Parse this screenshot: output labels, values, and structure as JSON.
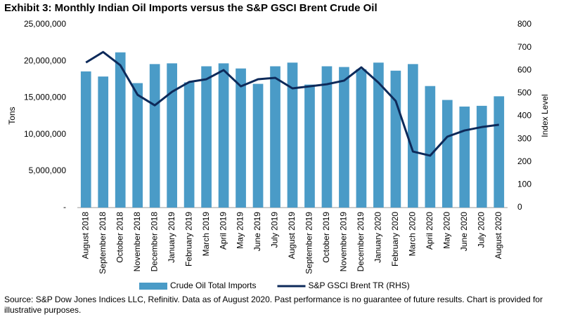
{
  "chart_data": {
    "type": "combo",
    "title": "Exhibit 3: Monthly Indian Oil Imports versus the S&P GSCI Brent Crude Oil",
    "y_label": "Tons",
    "y2_label": "Index Level",
    "categories": [
      "August 2018",
      "September 2018",
      "October 2018",
      "November 2018",
      "December 2018",
      "January 2019",
      "February 2019",
      "March 2019",
      "April 2019",
      "May 2019",
      "June 2019",
      "July 2019",
      "August 2019",
      "September 2019",
      "October 2019",
      "November 2019",
      "December 2019",
      "January 2020",
      "February 2020",
      "March 2020",
      "April 2020",
      "May 2020",
      "June 2020",
      "July 2020",
      "August 2020"
    ],
    "series": [
      {
        "name": "Crude Oil Total Imports",
        "type": "bar",
        "color": "#4a9bc7",
        "values": [
          18600000,
          17900000,
          21200000,
          17000000,
          19600000,
          19700000,
          17100000,
          19300000,
          19700000,
          19000000,
          16900000,
          19300000,
          19800000,
          16800000,
          19300000,
          19200000,
          18900000,
          19800000,
          18700000,
          19600000,
          16600000,
          14700000,
          13800000,
          13900000,
          15200000
        ]
      },
      {
        "name": "S&P GSCI Brent TR (RHS)",
        "type": "line",
        "axis": "y2",
        "color": "#0d2a5a",
        "values": [
          634,
          680,
          622,
          493,
          447,
          506,
          549,
          561,
          601,
          530,
          561,
          567,
          521,
          530,
          539,
          555,
          613,
          546,
          466,
          245,
          227,
          310,
          337,
          352,
          362
        ]
      }
    ],
    "ylim": [
      0,
      25000000
    ],
    "yticks": [
      {
        "value": 0,
        "label": "-"
      },
      {
        "value": 5000000,
        "label": "5,000,000"
      },
      {
        "value": 10000000,
        "label": "10,000,000"
      },
      {
        "value": 15000000,
        "label": "15,000,000"
      },
      {
        "value": 20000000,
        "label": "20,000,000"
      },
      {
        "value": 25000000,
        "label": "25,000,000"
      }
    ],
    "y2lim": [
      0,
      800
    ],
    "y2ticks": [
      0,
      100,
      200,
      300,
      400,
      500,
      600,
      700,
      800
    ],
    "grid": false,
    "legend": "bottom",
    "source": "Source: S&P Dow Jones Indices LLC, Refinitiv. Data as of August 2020. Past performance is no guarantee of future results. Chart is provided for illustrative purposes."
  }
}
